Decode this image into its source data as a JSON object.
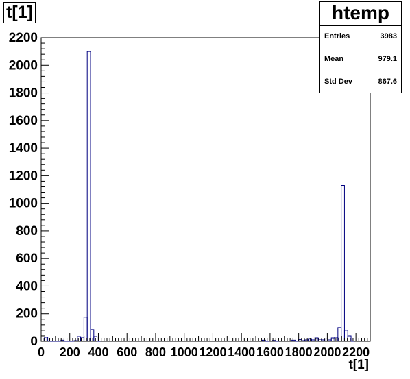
{
  "chart_data": {
    "type": "histogram",
    "title": "t[1]",
    "xlabel": "t[1]",
    "ylabel": "",
    "xlim": [
      0,
      2300
    ],
    "ylim": [
      0,
      2200
    ],
    "bin_width": 23,
    "x_ticks": [
      0,
      200,
      400,
      600,
      800,
      1000,
      1200,
      1400,
      1600,
      1800,
      2000,
      2200
    ],
    "y_ticks": [
      0,
      200,
      400,
      600,
      800,
      1000,
      1200,
      1400,
      1600,
      1800,
      2000,
      2200
    ],
    "x_tick_labels": [
      "0",
      "200",
      "400",
      "600",
      "800",
      "1000",
      "1200",
      "1400",
      "1600",
      "1800",
      "2000",
      "2200"
    ],
    "y_tick_labels": [
      "0",
      "200",
      "400",
      "600",
      "800",
      "1000",
      "1200",
      "1400",
      "1600",
      "1800",
      "2000",
      "2200"
    ],
    "bins": [
      {
        "x": 0,
        "y": 0
      },
      {
        "x": 23,
        "y": 30
      },
      {
        "x": 46,
        "y": 0
      },
      {
        "x": 69,
        "y": 0
      },
      {
        "x": 92,
        "y": 0
      },
      {
        "x": 115,
        "y": 0
      },
      {
        "x": 138,
        "y": 8
      },
      {
        "x": 161,
        "y": 0
      },
      {
        "x": 184,
        "y": 0
      },
      {
        "x": 207,
        "y": 0
      },
      {
        "x": 230,
        "y": 5
      },
      {
        "x": 253,
        "y": 35
      },
      {
        "x": 276,
        "y": 30
      },
      {
        "x": 299,
        "y": 175
      },
      {
        "x": 322,
        "y": 2100
      },
      {
        "x": 345,
        "y": 85
      },
      {
        "x": 368,
        "y": 35
      },
      {
        "x": 391,
        "y": 0
      },
      {
        "x": 1545,
        "y": 8
      },
      {
        "x": 1568,
        "y": 0
      },
      {
        "x": 1614,
        "y": 6
      },
      {
        "x": 1637,
        "y": 0
      },
      {
        "x": 1752,
        "y": 8
      },
      {
        "x": 1775,
        "y": 0
      },
      {
        "x": 1798,
        "y": 12
      },
      {
        "x": 1821,
        "y": 5
      },
      {
        "x": 1844,
        "y": 10
      },
      {
        "x": 1867,
        "y": 20
      },
      {
        "x": 1890,
        "y": 10
      },
      {
        "x": 1913,
        "y": 25
      },
      {
        "x": 1936,
        "y": 15
      },
      {
        "x": 1959,
        "y": 10
      },
      {
        "x": 1982,
        "y": 18
      },
      {
        "x": 2005,
        "y": 10
      },
      {
        "x": 2028,
        "y": 25
      },
      {
        "x": 2051,
        "y": 30
      },
      {
        "x": 2074,
        "y": 100
      },
      {
        "x": 2097,
        "y": 1130
      },
      {
        "x": 2120,
        "y": 80
      },
      {
        "x": 2143,
        "y": 40
      },
      {
        "x": 2166,
        "y": 0
      }
    ],
    "line_color": "#000080",
    "legend": "top-right"
  },
  "stats": {
    "title": "htemp",
    "entries_label": "Entries",
    "entries_value": "3983",
    "mean_label": "Mean",
    "mean_value": "979.1",
    "stddev_label": "Std Dev",
    "stddev_value": "867.6"
  }
}
